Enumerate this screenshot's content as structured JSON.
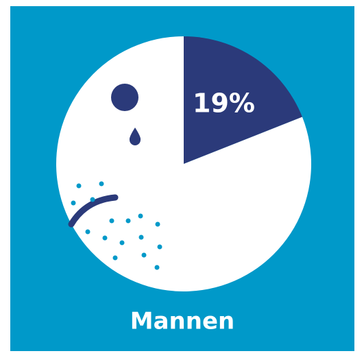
{
  "chart_data": {
    "type": "pie",
    "title": "Mannen",
    "values": [
      19,
      81
    ],
    "value_labels": [
      "19%",
      null
    ],
    "colors": [
      "#2b3a7a",
      "#ffffff"
    ]
  }
}
